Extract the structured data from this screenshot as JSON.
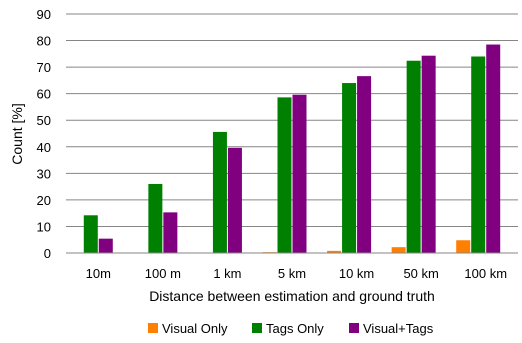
{
  "chart_data": {
    "type": "bar",
    "title": "",
    "xlabel": "Distance between estimation and ground truth",
    "ylabel": "Count [%]",
    "ylim": [
      0,
      90
    ],
    "yticks": [
      0,
      10,
      20,
      30,
      40,
      50,
      60,
      70,
      80,
      90
    ],
    "grid": true,
    "legend_position": "bottom",
    "categories": [
      "10m",
      "100 m",
      "1 km",
      "5 km",
      "10 km",
      "50 km",
      "100 km"
    ],
    "series": [
      {
        "name": "Visual Only",
        "color": "#ff8000",
        "values": [
          0,
          0,
          0,
          0.3,
          0.8,
          2.2,
          4.8
        ]
      },
      {
        "name": "Tags Only",
        "color": "#008000",
        "values": [
          14.2,
          26,
          45.6,
          58.6,
          64,
          72.4,
          74
        ]
      },
      {
        "name": "Visual+Tags",
        "color": "#800080",
        "values": [
          5.4,
          15.3,
          39.6,
          59.6,
          66.6,
          74.3,
          78.5
        ]
      }
    ]
  }
}
